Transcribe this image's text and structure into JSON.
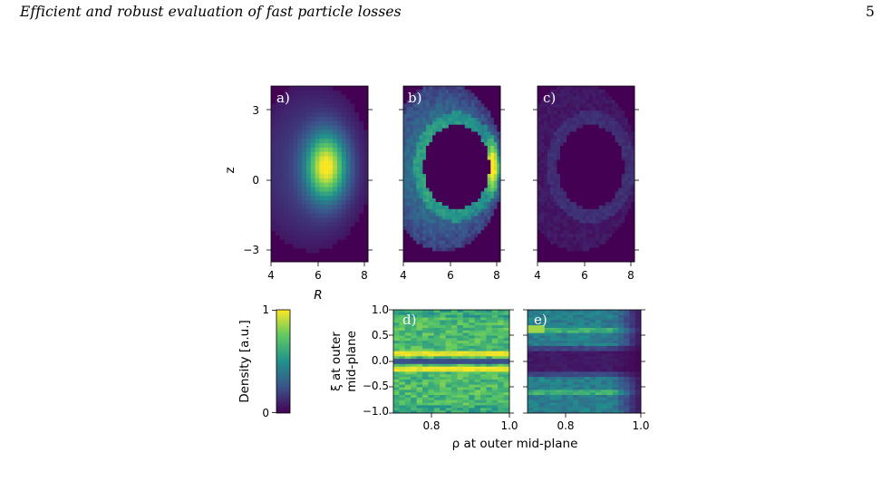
{
  "header": {
    "title": "Efficient and robust evaluation of fast particle losses",
    "page_number": "5"
  },
  "colors": {
    "viridis_dark": "#440154",
    "viridis_blue": "#31688e",
    "viridis_teal": "#21918c",
    "viridis_green": "#5ec962",
    "viridis_yellow": "#fde725"
  },
  "figure": {
    "panel_labels": [
      "a)",
      "b)",
      "c)",
      "d)",
      "e)"
    ],
    "top_panels": {
      "xlabel": "R",
      "ylabel": "z",
      "xticks": [
        "4",
        "6",
        "8"
      ],
      "yticks": [
        "3",
        "0",
        "−3"
      ]
    },
    "bottom_panels": {
      "xlabel": "ρ at outer mid-plane",
      "ylabel_line1": "ξ at outer",
      "ylabel_line2": "mid-plane",
      "xticks_d": [
        "0.8",
        "1.0"
      ],
      "xticks_e": [
        "0.8",
        "1.0"
      ],
      "yticks": [
        "1.0",
        "0.5",
        "0.0",
        "−0.5",
        "−1.0"
      ]
    },
    "colorbar": {
      "label": "Density [a.u.]",
      "max_label": "1",
      "min_label": "0"
    }
  },
  "chart_data": [
    {
      "type": "heatmap",
      "panel": "a)",
      "xlabel": "R",
      "ylabel": "z",
      "xlim": [
        4,
        8.2
      ],
      "ylim": [
        -4.1,
        4.1
      ],
      "description_values": {
        "peak_R": 6.4,
        "peak_z": 0.6,
        "peak_density": 1.0
      }
    },
    {
      "type": "heatmap",
      "panel": "b)",
      "xlabel": "R",
      "ylabel": "z",
      "xlim": [
        4,
        8.2
      ],
      "ylim": [
        -4.1,
        4.1
      ],
      "description_values": {
        "hole_center_R": 6.4,
        "hole_center_z": 0.6,
        "hotspot_R": 7.8,
        "hotspot_z": 0.5
      }
    },
    {
      "type": "heatmap",
      "panel": "c)",
      "xlabel": "R",
      "ylabel": "z",
      "xlim": [
        4,
        8.2
      ],
      "ylim": [
        -4.1,
        4.1
      ],
      "description_values": {
        "hole_center_R": 6.4,
        "hole_center_z": 0.6,
        "ring_density": 0.1
      }
    },
    {
      "type": "heatmap",
      "panel": "d)",
      "xlabel": "ρ at outer mid-plane",
      "ylabel": "ξ at outer mid-plane",
      "xlim": [
        0.7,
        1.0
      ],
      "ylim": [
        -1.0,
        1.0
      ],
      "description_values": {
        "bright_band_xi": [
          0.15,
          -0.15
        ],
        "dark_band_xi": 0.0
      }
    },
    {
      "type": "heatmap",
      "panel": "e)",
      "xlabel": "ρ at outer mid-plane",
      "ylabel": "ξ at outer mid-plane",
      "xlim": [
        0.7,
        1.0
      ],
      "ylim": [
        -1.0,
        1.0
      ],
      "description_values": {
        "bright_band_xi": [
          0.6,
          -0.6
        ],
        "dark_band_xi": 0.0
      }
    }
  ]
}
